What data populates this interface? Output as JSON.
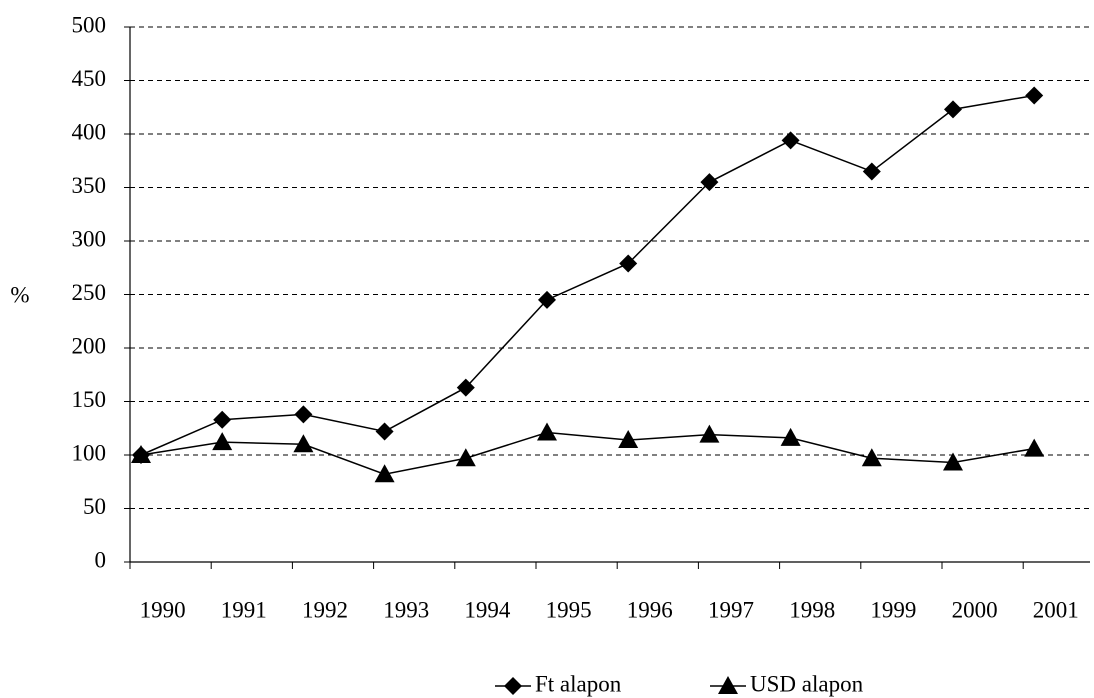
{
  "chart_data": {
    "type": "line",
    "y_label": "%",
    "categories": [
      "1990",
      "1991",
      "1992",
      "1993",
      "1994",
      "1995",
      "1996",
      "1997",
      "1998",
      "1999",
      "2000",
      "2001"
    ],
    "series": [
      {
        "name": "Ft alapon",
        "color": "#000000",
        "marker": "diamond",
        "values": [
          100,
          133,
          138,
          122,
          163,
          245,
          279,
          355,
          394,
          365,
          423,
          436
        ]
      },
      {
        "name": "USD alapon",
        "color": "#000000",
        "marker": "triangle",
        "values": [
          100,
          112,
          110,
          82,
          97,
          121,
          114,
          119,
          116,
          97,
          93,
          106
        ]
      }
    ],
    "ylim": [
      0,
      500
    ],
    "yticks": [
      0,
      50,
      100,
      150,
      200,
      250,
      300,
      350,
      400,
      450,
      500
    ],
    "grid": true,
    "legend": "bottom"
  }
}
